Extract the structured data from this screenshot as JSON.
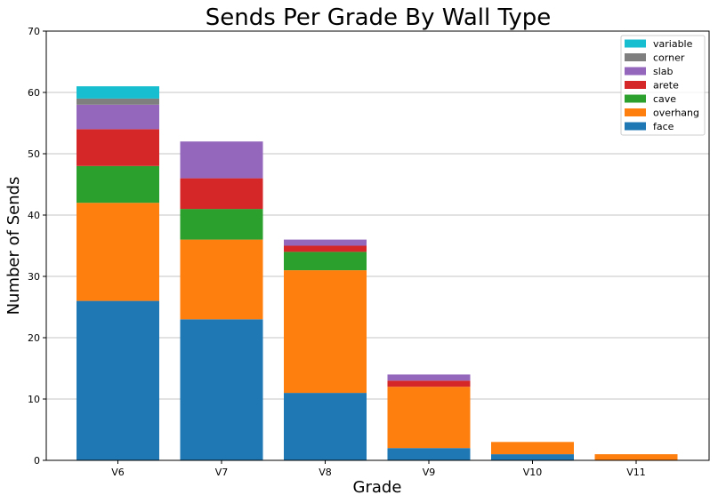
{
  "chart_data": {
    "type": "bar",
    "stacked": true,
    "title": "Sends Per Grade By Wall Type",
    "xlabel": "Grade",
    "ylabel": "Number of Sends",
    "categories": [
      "V6",
      "V7",
      "V8",
      "V9",
      "V10",
      "V11"
    ],
    "ylim": [
      0,
      70
    ],
    "yticks": [
      0,
      10,
      20,
      30,
      40,
      50,
      60,
      70
    ],
    "grid": "horizontal",
    "legend_position": "top-right",
    "series": [
      {
        "name": "face",
        "color": "#1f77b4",
        "values": [
          26,
          23,
          11,
          2,
          1,
          0
        ]
      },
      {
        "name": "overhang",
        "color": "#ff7f0e",
        "values": [
          16,
          13,
          20,
          10,
          2,
          1
        ]
      },
      {
        "name": "cave",
        "color": "#2ca02c",
        "values": [
          6,
          5,
          3,
          0,
          0,
          0
        ]
      },
      {
        "name": "arete",
        "color": "#d62728",
        "values": [
          6,
          5,
          1,
          1,
          0,
          0
        ]
      },
      {
        "name": "slab",
        "color": "#9467bd",
        "values": [
          4,
          6,
          1,
          1,
          0,
          0
        ]
      },
      {
        "name": "corner",
        "color": "#7f7f7f",
        "values": [
          1,
          0,
          0,
          0,
          0,
          0
        ]
      },
      {
        "name": "variable",
        "color": "#17becf",
        "values": [
          2,
          0,
          0,
          0,
          0,
          0
        ]
      }
    ]
  }
}
